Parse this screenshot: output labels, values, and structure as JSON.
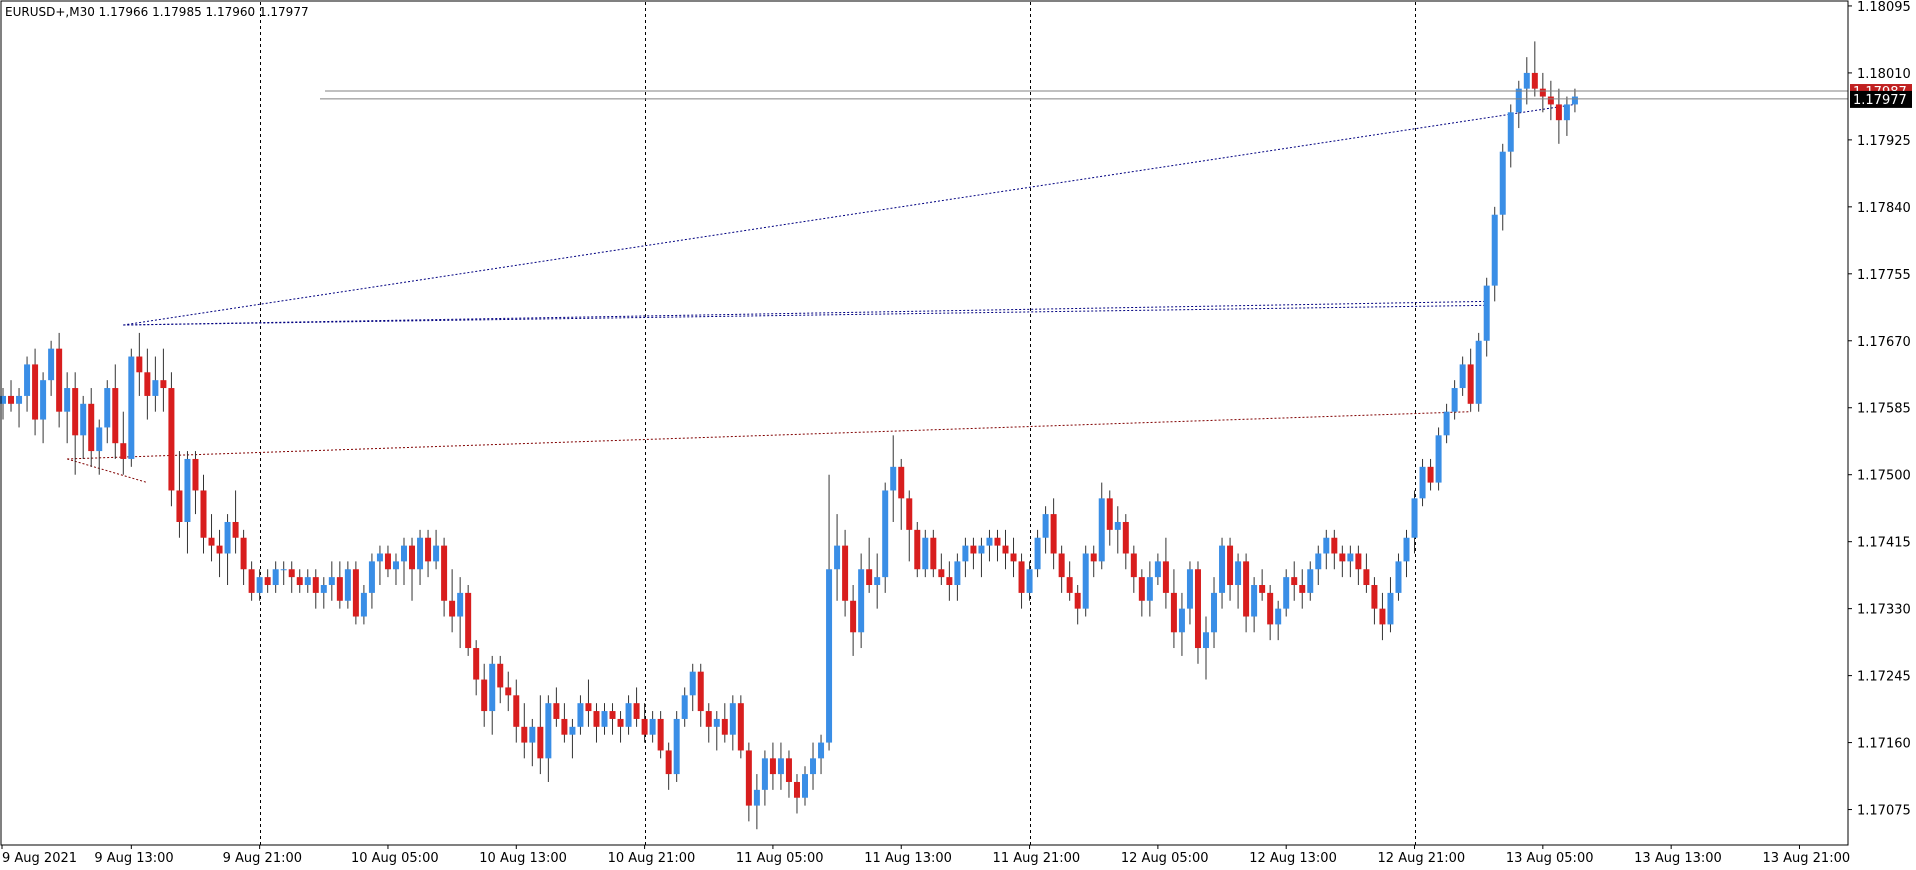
{
  "header": {
    "symbol_text": "EURUSD+,M30  1.17966 1.17985 1.17960 1.17977"
  },
  "price_tags": {
    "bid_label": "1.17977",
    "ask_label": "1.17987",
    "bid_color": "#000000",
    "ask_color": "#c02020"
  },
  "chart_data": {
    "type": "candlestick",
    "title": "",
    "symbol": "EURUSD+",
    "timeframe": "M30",
    "ohlc_header": {
      "open": 1.17966,
      "high": 1.17985,
      "low": 1.1796,
      "close": 1.17977
    },
    "bid": 1.17977,
    "ask": 1.17987,
    "ylim": [
      1.1703,
      1.181
    ],
    "y_ticks": [
      "1.18095",
      "1.18010",
      "1.17925",
      "1.17840",
      "1.17755",
      "1.17670",
      "1.17585",
      "1.17500",
      "1.17415",
      "1.17330",
      "1.17245",
      "1.17160",
      "1.17075"
    ],
    "x_ticks": [
      "9 Aug 2021",
      "9 Aug 13:00",
      "9 Aug 21:00",
      "10 Aug 05:00",
      "10 Aug 13:00",
      "10 Aug 21:00",
      "11 Aug 05:00",
      "11 Aug 13:00",
      "11 Aug 21:00",
      "12 Aug 05:00",
      "12 Aug 13:00",
      "12 Aug 21:00",
      "13 Aug 05:00",
      "13 Aug 13:00",
      "13 Aug 21:00"
    ],
    "period_separators": [
      "9 Aug 21:00",
      "10 Aug 21:00",
      "11 Aug 21:00",
      "12 Aug 21:00"
    ],
    "colors": {
      "bull": "#3a8ee6",
      "bear": "#d81e1e",
      "grid": "#000000",
      "bid_line": "#808080"
    },
    "candles_start": "9 Aug 2021 06:30",
    "candle_interval_minutes": 30,
    "candles": [
      [
        1.1759,
        1.1761,
        1.1757,
        1.176
      ],
      [
        1.176,
        1.1762,
        1.1758,
        1.1759
      ],
      [
        1.1759,
        1.1761,
        1.1756,
        1.176
      ],
      [
        1.176,
        1.1765,
        1.1758,
        1.1764
      ],
      [
        1.1764,
        1.1766,
        1.1755,
        1.1757
      ],
      [
        1.1757,
        1.1763,
        1.1754,
        1.1762
      ],
      [
        1.1762,
        1.1767,
        1.176,
        1.1766
      ],
      [
        1.1766,
        1.1768,
        1.1756,
        1.1758
      ],
      [
        1.1758,
        1.1763,
        1.1754,
        1.1761
      ],
      [
        1.1761,
        1.1763,
        1.175,
        1.1755
      ],
      [
        1.1755,
        1.176,
        1.1752,
        1.1759
      ],
      [
        1.1759,
        1.1761,
        1.1751,
        1.1753
      ],
      [
        1.1753,
        1.1757,
        1.175,
        1.1756
      ],
      [
        1.1756,
        1.1762,
        1.1754,
        1.1761
      ],
      [
        1.1761,
        1.1764,
        1.1752,
        1.1754
      ],
      [
        1.1754,
        1.1758,
        1.175,
        1.1752
      ],
      [
        1.1752,
        1.1766,
        1.1751,
        1.1765
      ],
      [
        1.1765,
        1.1768,
        1.176,
        1.1763
      ],
      [
        1.1763,
        1.1766,
        1.1757,
        1.176
      ],
      [
        1.176,
        1.1765,
        1.1758,
        1.1762
      ],
      [
        1.1762,
        1.1766,
        1.1758,
        1.1761
      ],
      [
        1.1761,
        1.1763,
        1.1746,
        1.1748
      ],
      [
        1.1748,
        1.1753,
        1.1742,
        1.1744
      ],
      [
        1.1744,
        1.1753,
        1.174,
        1.1752
      ],
      [
        1.1752,
        1.1753,
        1.1745,
        1.1748
      ],
      [
        1.1748,
        1.175,
        1.174,
        1.1742
      ],
      [
        1.1742,
        1.1745,
        1.1739,
        1.1741
      ],
      [
        1.1741,
        1.1743,
        1.1737,
        1.174
      ],
      [
        1.174,
        1.1745,
        1.1736,
        1.1744
      ],
      [
        1.1744,
        1.1748,
        1.174,
        1.1742
      ],
      [
        1.1742,
        1.1743,
        1.1736,
        1.1738
      ],
      [
        1.1738,
        1.1739,
        1.1734,
        1.1735
      ],
      [
        1.1735,
        1.1738,
        1.1734,
        1.1737
      ],
      [
        1.1737,
        1.1738,
        1.1735,
        1.1736
      ],
      [
        1.1736,
        1.1739,
        1.1735,
        1.1738
      ],
      [
        1.1738,
        1.1739,
        1.1736,
        1.1738
      ],
      [
        1.1738,
        1.1739,
        1.1735,
        1.1737
      ],
      [
        1.1737,
        1.1738,
        1.1735,
        1.1736
      ],
      [
        1.1736,
        1.1738,
        1.1735,
        1.1737
      ],
      [
        1.1737,
        1.1738,
        1.1733,
        1.1735
      ],
      [
        1.1735,
        1.1737,
        1.1733,
        1.1736
      ],
      [
        1.1736,
        1.1739,
        1.1734,
        1.1737
      ],
      [
        1.1737,
        1.1739,
        1.1733,
        1.1734
      ],
      [
        1.1734,
        1.1739,
        1.1733,
        1.1738
      ],
      [
        1.1738,
        1.1739,
        1.1731,
        1.1732
      ],
      [
        1.1732,
        1.1736,
        1.1731,
        1.1735
      ],
      [
        1.1735,
        1.174,
        1.1733,
        1.1739
      ],
      [
        1.1739,
        1.1741,
        1.1736,
        1.174
      ],
      [
        1.174,
        1.1741,
        1.1737,
        1.1738
      ],
      [
        1.1738,
        1.174,
        1.1736,
        1.1739
      ],
      [
        1.1739,
        1.1742,
        1.1736,
        1.1741
      ],
      [
        1.1741,
        1.1742,
        1.1734,
        1.1738
      ],
      [
        1.1738,
        1.1743,
        1.1736,
        1.1742
      ],
      [
        1.1742,
        1.1743,
        1.1737,
        1.1739
      ],
      [
        1.1739,
        1.1743,
        1.1738,
        1.1741
      ],
      [
        1.1741,
        1.1742,
        1.1732,
        1.1734
      ],
      [
        1.1734,
        1.1738,
        1.173,
        1.1732
      ],
      [
        1.1732,
        1.1737,
        1.1728,
        1.1735
      ],
      [
        1.1735,
        1.1736,
        1.1727,
        1.1728
      ],
      [
        1.1728,
        1.1729,
        1.1722,
        1.1724
      ],
      [
        1.1724,
        1.1726,
        1.1718,
        1.172
      ],
      [
        1.172,
        1.1727,
        1.1717,
        1.1726
      ],
      [
        1.1726,
        1.1727,
        1.1721,
        1.1723
      ],
      [
        1.1723,
        1.1725,
        1.172,
        1.1722
      ],
      [
        1.1722,
        1.1724,
        1.1716,
        1.1718
      ],
      [
        1.1718,
        1.1721,
        1.1714,
        1.1716
      ],
      [
        1.1716,
        1.1719,
        1.1713,
        1.1718
      ],
      [
        1.1718,
        1.1722,
        1.1712,
        1.1714
      ],
      [
        1.1714,
        1.1722,
        1.1711,
        1.1721
      ],
      [
        1.1721,
        1.1723,
        1.1718,
        1.1719
      ],
      [
        1.1719,
        1.1721,
        1.1716,
        1.1717
      ],
      [
        1.1717,
        1.1719,
        1.1714,
        1.1718
      ],
      [
        1.1718,
        1.1722,
        1.1717,
        1.1721
      ],
      [
        1.1721,
        1.1724,
        1.1718,
        1.172
      ],
      [
        1.172,
        1.1721,
        1.1716,
        1.1718
      ],
      [
        1.1718,
        1.1721,
        1.1717,
        1.172
      ],
      [
        1.172,
        1.1721,
        1.1717,
        1.1719
      ],
      [
        1.1719,
        1.172,
        1.1716,
        1.1718
      ],
      [
        1.1718,
        1.1722,
        1.1717,
        1.1721
      ],
      [
        1.1721,
        1.1723,
        1.1718,
        1.1719
      ],
      [
        1.1719,
        1.1721,
        1.1716,
        1.1717
      ],
      [
        1.1717,
        1.172,
        1.1716,
        1.1719
      ],
      [
        1.1719,
        1.172,
        1.1714,
        1.1715
      ],
      [
        1.1715,
        1.1716,
        1.171,
        1.1712
      ],
      [
        1.1712,
        1.172,
        1.1711,
        1.1719
      ],
      [
        1.1719,
        1.1723,
        1.1718,
        1.1722
      ],
      [
        1.1722,
        1.1726,
        1.172,
        1.1725
      ],
      [
        1.1725,
        1.1726,
        1.1718,
        1.172
      ],
      [
        1.172,
        1.1721,
        1.1716,
        1.1718
      ],
      [
        1.1718,
        1.172,
        1.1715,
        1.1719
      ],
      [
        1.1719,
        1.1721,
        1.1716,
        1.1717
      ],
      [
        1.1717,
        1.1722,
        1.1715,
        1.1721
      ],
      [
        1.1721,
        1.1722,
        1.1714,
        1.1715
      ],
      [
        1.1715,
        1.1716,
        1.1706,
        1.1708
      ],
      [
        1.1708,
        1.1712,
        1.1705,
        1.171
      ],
      [
        1.171,
        1.1715,
        1.1708,
        1.1714
      ],
      [
        1.1714,
        1.1716,
        1.171,
        1.1712
      ],
      [
        1.1712,
        1.1716,
        1.171,
        1.1714
      ],
      [
        1.1714,
        1.1715,
        1.1709,
        1.1711
      ],
      [
        1.1711,
        1.1712,
        1.1707,
        1.1709
      ],
      [
        1.1709,
        1.1713,
        1.1708,
        1.1712
      ],
      [
        1.1712,
        1.1716,
        1.171,
        1.1714
      ],
      [
        1.1714,
        1.1717,
        1.1712,
        1.1716
      ],
      [
        1.1716,
        1.175,
        1.1715,
        1.1738
      ],
      [
        1.1738,
        1.1745,
        1.1734,
        1.1741
      ],
      [
        1.1741,
        1.1743,
        1.1732,
        1.1734
      ],
      [
        1.1734,
        1.1736,
        1.1727,
        1.173
      ],
      [
        1.173,
        1.174,
        1.1728,
        1.1738
      ],
      [
        1.1738,
        1.1742,
        1.1735,
        1.1736
      ],
      [
        1.1736,
        1.174,
        1.1733,
        1.1737
      ],
      [
        1.1737,
        1.1749,
        1.1735,
        1.1748
      ],
      [
        1.1748,
        1.1755,
        1.1744,
        1.1751
      ],
      [
        1.1751,
        1.1752,
        1.1743,
        1.1747
      ],
      [
        1.1747,
        1.1748,
        1.1739,
        1.1743
      ],
      [
        1.1743,
        1.1744,
        1.1737,
        1.1738
      ],
      [
        1.1738,
        1.1743,
        1.1737,
        1.1742
      ],
      [
        1.1742,
        1.1743,
        1.1737,
        1.1738
      ],
      [
        1.1738,
        1.174,
        1.1736,
        1.1737
      ],
      [
        1.1737,
        1.1739,
        1.1734,
        1.1736
      ],
      [
        1.1736,
        1.174,
        1.1734,
        1.1739
      ],
      [
        1.1739,
        1.1742,
        1.1737,
        1.1741
      ],
      [
        1.1741,
        1.1742,
        1.1738,
        1.174
      ],
      [
        1.174,
        1.1742,
        1.1737,
        1.1741
      ],
      [
        1.1741,
        1.1743,
        1.1739,
        1.1742
      ],
      [
        1.1742,
        1.1743,
        1.1739,
        1.1741
      ],
      [
        1.1741,
        1.1743,
        1.1738,
        1.174
      ],
      [
        1.174,
        1.1742,
        1.1737,
        1.1739
      ],
      [
        1.1739,
        1.174,
        1.1733,
        1.1735
      ],
      [
        1.1735,
        1.1739,
        1.1734,
        1.1738
      ],
      [
        1.1738,
        1.1743,
        1.1737,
        1.1742
      ],
      [
        1.1742,
        1.1746,
        1.174,
        1.1745
      ],
      [
        1.1745,
        1.1747,
        1.1738,
        1.174
      ],
      [
        1.174,
        1.1741,
        1.1735,
        1.1737
      ],
      [
        1.1737,
        1.1739,
        1.1734,
        1.1735
      ],
      [
        1.1735,
        1.1736,
        1.1731,
        1.1733
      ],
      [
        1.1733,
        1.1741,
        1.1732,
        1.174
      ],
      [
        1.174,
        1.1741,
        1.1737,
        1.1739
      ],
      [
        1.1739,
        1.1749,
        1.1738,
        1.1747
      ],
      [
        1.1747,
        1.1748,
        1.1741,
        1.1743
      ],
      [
        1.1743,
        1.1746,
        1.174,
        1.1744
      ],
      [
        1.1744,
        1.1745,
        1.1738,
        1.174
      ],
      [
        1.174,
        1.1741,
        1.1735,
        1.1737
      ],
      [
        1.1737,
        1.1738,
        1.1732,
        1.1734
      ],
      [
        1.1734,
        1.1739,
        1.1732,
        1.1737
      ],
      [
        1.1737,
        1.174,
        1.1736,
        1.1739
      ],
      [
        1.1739,
        1.1742,
        1.1733,
        1.1735
      ],
      [
        1.1735,
        1.1738,
        1.1728,
        1.173
      ],
      [
        1.173,
        1.1735,
        1.1727,
        1.1733
      ],
      [
        1.1733,
        1.1739,
        1.1731,
        1.1738
      ],
      [
        1.1738,
        1.1739,
        1.1726,
        1.1728
      ],
      [
        1.1728,
        1.1732,
        1.1724,
        1.173
      ],
      [
        1.173,
        1.1737,
        1.1728,
        1.1735
      ],
      [
        1.1735,
        1.1742,
        1.1733,
        1.1741
      ],
      [
        1.1741,
        1.1742,
        1.1734,
        1.1736
      ],
      [
        1.1736,
        1.174,
        1.1733,
        1.1739
      ],
      [
        1.1739,
        1.174,
        1.173,
        1.1732
      ],
      [
        1.1732,
        1.1737,
        1.173,
        1.1736
      ],
      [
        1.1736,
        1.1738,
        1.1734,
        1.1735
      ],
      [
        1.1735,
        1.1736,
        1.1729,
        1.1731
      ],
      [
        1.1731,
        1.1734,
        1.1729,
        1.1733
      ],
      [
        1.1733,
        1.1738,
        1.1732,
        1.1737
      ],
      [
        1.1737,
        1.1739,
        1.1734,
        1.1736
      ],
      [
        1.1736,
        1.1738,
        1.1733,
        1.1735
      ],
      [
        1.1735,
        1.1739,
        1.1734,
        1.1738
      ],
      [
        1.1738,
        1.1741,
        1.1736,
        1.174
      ],
      [
        1.174,
        1.1743,
        1.1738,
        1.1742
      ],
      [
        1.1742,
        1.1743,
        1.1738,
        1.174
      ],
      [
        1.174,
        1.1741,
        1.1737,
        1.1739
      ],
      [
        1.1739,
        1.1741,
        1.1737,
        1.174
      ],
      [
        1.174,
        1.1741,
        1.1736,
        1.1738
      ],
      [
        1.1738,
        1.174,
        1.1735,
        1.1736
      ],
      [
        1.1736,
        1.1737,
        1.1731,
        1.1733
      ],
      [
        1.1733,
        1.1735,
        1.1729,
        1.1731
      ],
      [
        1.1731,
        1.1737,
        1.173,
        1.1735
      ],
      [
        1.1735,
        1.174,
        1.1734,
        1.1739
      ],
      [
        1.1739,
        1.1743,
        1.1737,
        1.1742
      ],
      [
        1.1742,
        1.1748,
        1.174,
        1.1747
      ],
      [
        1.1747,
        1.1752,
        1.1746,
        1.1751
      ],
      [
        1.1751,
        1.1752,
        1.1748,
        1.1749
      ],
      [
        1.1749,
        1.1756,
        1.1748,
        1.1755
      ],
      [
        1.1755,
        1.1759,
        1.1754,
        1.1758
      ],
      [
        1.1758,
        1.1762,
        1.1757,
        1.1761
      ],
      [
        1.1761,
        1.1765,
        1.176,
        1.1764
      ],
      [
        1.1764,
        1.1766,
        1.1758,
        1.1759
      ],
      [
        1.1759,
        1.1768,
        1.1758,
        1.1767
      ],
      [
        1.1767,
        1.1775,
        1.1765,
        1.1774
      ],
      [
        1.1774,
        1.1784,
        1.1772,
        1.1783
      ],
      [
        1.1783,
        1.1792,
        1.1781,
        1.1791
      ],
      [
        1.1791,
        1.1797,
        1.1789,
        1.1796
      ],
      [
        1.1796,
        1.18,
        1.1794,
        1.1799
      ],
      [
        1.1799,
        1.1803,
        1.1797,
        1.1801
      ],
      [
        1.1801,
        1.1805,
        1.1798,
        1.1799
      ],
      [
        1.1799,
        1.1801,
        1.1796,
        1.1798
      ],
      [
        1.1798,
        1.18,
        1.1795,
        1.1797
      ],
      [
        1.1797,
        1.1799,
        1.1792,
        1.1795
      ],
      [
        1.1795,
        1.1798,
        1.1793,
        1.1797
      ],
      [
        1.1797,
        1.1799,
        1.1796,
        1.1798
      ]
    ]
  }
}
